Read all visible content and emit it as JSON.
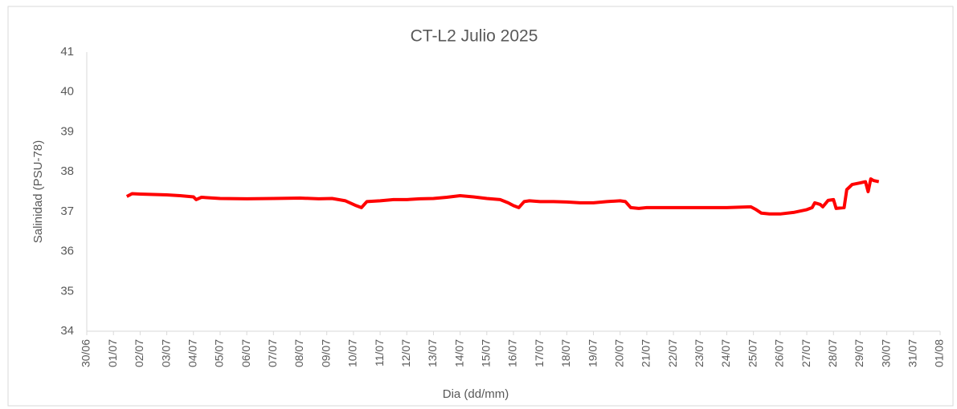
{
  "chart_data": {
    "type": "line",
    "title": "CT-L2 Julio 2025",
    "xlabel": "Dia (dd/mm)",
    "ylabel": "Salinidad (PSU-78)",
    "series": [
      {
        "color": "#ff0000",
        "x": [
          1.5,
          1.7,
          2.0,
          2.5,
          3.0,
          3.5,
          4.0,
          4.1,
          4.3,
          5.0,
          6.0,
          7.0,
          8.0,
          8.7,
          9.2,
          9.7,
          10.1,
          10.3,
          10.5,
          11.0,
          11.5,
          12.0,
          12.5,
          13.0,
          13.5,
          14.0,
          14.5,
          15.0,
          15.5,
          15.8,
          16.0,
          16.2,
          16.4,
          16.6,
          17.0,
          17.5,
          18.0,
          18.5,
          19.0,
          19.5,
          20.0,
          20.2,
          20.4,
          20.7,
          21.0,
          22.0,
          23.0,
          24.0,
          24.9,
          25.1,
          25.3,
          25.6,
          26.0,
          26.5,
          27.0,
          27.2,
          27.3,
          27.5,
          27.6,
          27.8,
          28.0,
          28.1,
          28.4,
          28.5,
          28.7,
          29.0,
          29.2,
          29.3,
          29.4,
          29.5,
          29.7
        ],
        "values": [
          37.38,
          37.45,
          37.44,
          37.43,
          37.42,
          37.4,
          37.37,
          37.3,
          37.36,
          37.33,
          37.32,
          37.33,
          37.34,
          37.32,
          37.33,
          37.27,
          37.15,
          37.1,
          37.25,
          37.27,
          37.3,
          37.3,
          37.32,
          37.33,
          37.36,
          37.4,
          37.37,
          37.33,
          37.3,
          37.22,
          37.15,
          37.1,
          37.25,
          37.27,
          37.25,
          37.25,
          37.24,
          37.22,
          37.22,
          37.25,
          37.27,
          37.25,
          37.1,
          37.08,
          37.1,
          37.1,
          37.1,
          37.1,
          37.12,
          37.05,
          36.96,
          36.94,
          36.94,
          36.98,
          37.05,
          37.1,
          37.22,
          37.18,
          37.12,
          37.28,
          37.3,
          37.08,
          37.1,
          37.55,
          37.68,
          37.72,
          37.75,
          37.5,
          37.82,
          37.78,
          37.75
        ]
      }
    ],
    "xlim": [
      0,
      32
    ],
    "xticks": [
      {
        "value": 0,
        "label": "30/06"
      },
      {
        "value": 1,
        "label": "01/07"
      },
      {
        "value": 2,
        "label": "02/07"
      },
      {
        "value": 3,
        "label": "03/07"
      },
      {
        "value": 4,
        "label": "04/07"
      },
      {
        "value": 5,
        "label": "05/07"
      },
      {
        "value": 6,
        "label": "06/07"
      },
      {
        "value": 7,
        "label": "07/07"
      },
      {
        "value": 8,
        "label": "08/07"
      },
      {
        "value": 9,
        "label": "09/07"
      },
      {
        "value": 10,
        "label": "10/07"
      },
      {
        "value": 11,
        "label": "11/07"
      },
      {
        "value": 12,
        "label": "12/07"
      },
      {
        "value": 13,
        "label": "13/07"
      },
      {
        "value": 14,
        "label": "14/07"
      },
      {
        "value": 15,
        "label": "15/07"
      },
      {
        "value": 16,
        "label": "16/07"
      },
      {
        "value": 17,
        "label": "17/07"
      },
      {
        "value": 18,
        "label": "18/07"
      },
      {
        "value": 19,
        "label": "19/07"
      },
      {
        "value": 20,
        "label": "20/07"
      },
      {
        "value": 21,
        "label": "21/07"
      },
      {
        "value": 22,
        "label": "22/07"
      },
      {
        "value": 23,
        "label": "23/07"
      },
      {
        "value": 24,
        "label": "24/07"
      },
      {
        "value": 25,
        "label": "25/07"
      },
      {
        "value": 26,
        "label": "26/07"
      },
      {
        "value": 27,
        "label": "27/07"
      },
      {
        "value": 28,
        "label": "28/07"
      },
      {
        "value": 29,
        "label": "29/07"
      },
      {
        "value": 30,
        "label": "30/07"
      },
      {
        "value": 31,
        "label": "31/07"
      },
      {
        "value": 32,
        "label": "01/08"
      }
    ],
    "ylim": [
      34,
      41
    ],
    "yticks": [
      34,
      35,
      36,
      37,
      38,
      39,
      40,
      41
    ],
    "grid": false
  }
}
